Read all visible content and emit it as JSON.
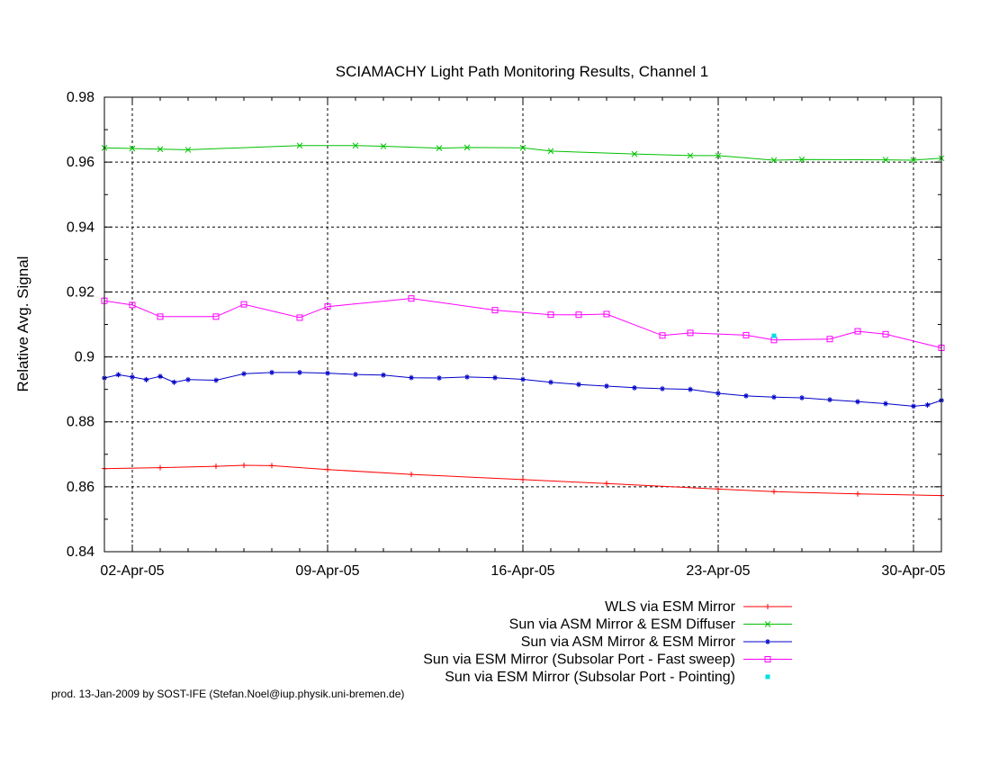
{
  "chart_data": {
    "type": "line",
    "title": "SCIAMACHY Light Path Monitoring Results, Channel 1",
    "xlabel": "",
    "ylabel": "Relative Avg. Signal",
    "xlim": [
      "2005-04-01",
      "2005-05-01"
    ],
    "ylim": [
      0.84,
      0.98
    ],
    "x_ticks": [
      {
        "x": "2005-04-02",
        "label": "02-Apr-05"
      },
      {
        "x": "2005-04-09",
        "label": "09-Apr-05"
      },
      {
        "x": "2005-04-16",
        "label": "16-Apr-05"
      },
      {
        "x": "2005-04-23",
        "label": "23-Apr-05"
      },
      {
        "x": "2005-04-30",
        "label": "30-Apr-05"
      }
    ],
    "y_ticks": [
      {
        "y": 0.84,
        "label": "0.84"
      },
      {
        "y": 0.86,
        "label": "0.86"
      },
      {
        "y": 0.88,
        "label": "0.88"
      },
      {
        "y": 0.9,
        "label": "0.9"
      },
      {
        "y": 0.92,
        "label": "0.92"
      },
      {
        "y": 0.94,
        "label": "0.94"
      },
      {
        "y": 0.96,
        "label": "0.96"
      },
      {
        "y": 0.98,
        "label": "0.98"
      }
    ],
    "grid": true,
    "legend_position": "below",
    "series": [
      {
        "name": "WLS via ESM Mirror",
        "color": "#ff0000",
        "marker": "plus",
        "points": [
          [
            "2005-04-01",
            0.8656
          ],
          [
            "2005-04-03",
            0.8659
          ],
          [
            "2005-04-05",
            0.8663
          ],
          [
            "2005-04-06",
            0.8666
          ],
          [
            "2005-04-07",
            0.8665
          ],
          [
            "2005-04-09",
            0.8653
          ],
          [
            "2005-04-12",
            0.8638
          ],
          [
            "2005-04-16",
            0.8622
          ],
          [
            "2005-04-19",
            0.861
          ],
          [
            "2005-04-23",
            0.8593
          ],
          [
            "2005-04-25",
            0.8585
          ],
          [
            "2005-04-28",
            0.8578
          ],
          [
            "2005-05-01",
            0.8573
          ]
        ]
      },
      {
        "name": "Sun via ASM Mirror & ESM Diffuser",
        "color": "#00c000",
        "marker": "x",
        "points": [
          [
            "2005-04-01",
            0.9644
          ],
          [
            "2005-04-02",
            0.9642
          ],
          [
            "2005-04-03",
            0.964
          ],
          [
            "2005-04-04",
            0.9638
          ],
          [
            "2005-04-08",
            0.9651
          ],
          [
            "2005-04-10",
            0.9651
          ],
          [
            "2005-04-11",
            0.9649
          ],
          [
            "2005-04-13",
            0.9643
          ],
          [
            "2005-04-14",
            0.9645
          ],
          [
            "2005-04-16",
            0.9644
          ],
          [
            "2005-04-17",
            0.9634
          ],
          [
            "2005-04-20",
            0.9625
          ],
          [
            "2005-04-22",
            0.962
          ],
          [
            "2005-04-23",
            0.962
          ],
          [
            "2005-04-25",
            0.9606
          ],
          [
            "2005-04-26",
            0.9608
          ],
          [
            "2005-04-29",
            0.9607
          ],
          [
            "2005-04-30",
            0.9606
          ],
          [
            "2005-05-01",
            0.9612
          ]
        ]
      },
      {
        "name": "Sun via ASM Mirror & ESM Mirror",
        "color": "#0000c8",
        "marker": "star",
        "points": [
          [
            "2005-04-01",
            0.8935
          ],
          [
            "2005-04-01.5",
            0.8945
          ],
          [
            "2005-04-02",
            0.8938
          ],
          [
            "2005-04-02.5",
            0.893
          ],
          [
            "2005-04-03",
            0.894
          ],
          [
            "2005-04-03.5",
            0.8922
          ],
          [
            "2005-04-04",
            0.893
          ],
          [
            "2005-04-05",
            0.8928
          ],
          [
            "2005-04-06",
            0.8948
          ],
          [
            "2005-04-07",
            0.8952
          ],
          [
            "2005-04-08",
            0.8952
          ],
          [
            "2005-04-09",
            0.895
          ],
          [
            "2005-04-10",
            0.8946
          ],
          [
            "2005-04-11",
            0.8944
          ],
          [
            "2005-04-12",
            0.8936
          ],
          [
            "2005-04-13",
            0.8935
          ],
          [
            "2005-04-14",
            0.8938
          ],
          [
            "2005-04-15",
            0.8936
          ],
          [
            "2005-04-16",
            0.8931
          ],
          [
            "2005-04-17",
            0.8922
          ],
          [
            "2005-04-18",
            0.8915
          ],
          [
            "2005-04-19",
            0.891
          ],
          [
            "2005-04-20",
            0.8905
          ],
          [
            "2005-04-21",
            0.8902
          ],
          [
            "2005-04-22",
            0.89
          ],
          [
            "2005-04-23",
            0.8888
          ],
          [
            "2005-04-24",
            0.888
          ],
          [
            "2005-04-25",
            0.8876
          ],
          [
            "2005-04-26",
            0.8874
          ],
          [
            "2005-04-27",
            0.8868
          ],
          [
            "2005-04-28",
            0.8862
          ],
          [
            "2005-04-29",
            0.8856
          ],
          [
            "2005-04-30",
            0.8848
          ],
          [
            "2005-04-30.5",
            0.8852
          ],
          [
            "2005-05-01",
            0.8866
          ]
        ]
      },
      {
        "name": "Sun via ESM Mirror (Subsolar Port - Fast sweep)",
        "color": "#ff00ff",
        "marker": "square",
        "points": [
          [
            "2005-04-01",
            0.9173
          ],
          [
            "2005-04-02",
            0.916
          ],
          [
            "2005-04-03",
            0.9124
          ],
          [
            "2005-04-05",
            0.9124
          ],
          [
            "2005-04-06",
            0.9162
          ],
          [
            "2005-04-08",
            0.9121
          ],
          [
            "2005-04-09",
            0.9155
          ],
          [
            "2005-04-12",
            0.918
          ],
          [
            "2005-04-15",
            0.9144
          ],
          [
            "2005-04-17",
            0.913
          ],
          [
            "2005-04-18",
            0.913
          ],
          [
            "2005-04-19",
            0.9132
          ],
          [
            "2005-04-21",
            0.9066
          ],
          [
            "2005-04-22",
            0.9074
          ],
          [
            "2005-04-24",
            0.9067
          ],
          [
            "2005-04-25",
            0.9052
          ],
          [
            "2005-04-27",
            0.9055
          ],
          [
            "2005-04-28",
            0.9079
          ],
          [
            "2005-04-29",
            0.907
          ],
          [
            "2005-05-01",
            0.9028
          ]
        ]
      },
      {
        "name": "Sun via ESM Mirror (Subsolar Port - Pointing)",
        "color": "#00e0e0",
        "marker": "dot",
        "points": [
          [
            "2005-04-25",
            0.9065
          ]
        ]
      }
    ]
  },
  "footer": "prod. 13-Jan-2009 by SOST-IFE (Stefan.Noel@iup.physik.uni-bremen.de)"
}
